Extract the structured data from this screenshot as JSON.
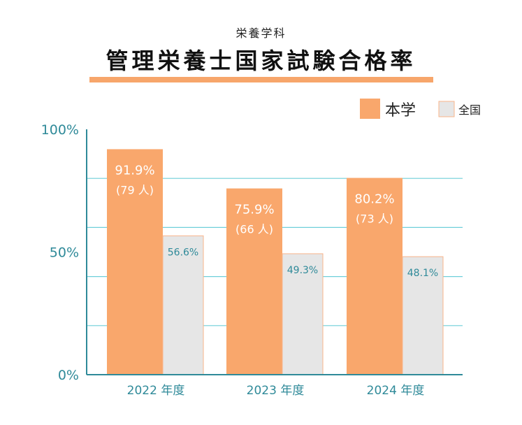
{
  "chart_data": {
    "type": "bar",
    "subtitle": "栄養学科",
    "title": "管理栄養士国家試験合格率",
    "categories": [
      "2022 年度",
      "2023 年度",
      "2024 年度"
    ],
    "series": [
      {
        "name": "本学",
        "color": "#f9a76c",
        "values": [
          91.9,
          75.9,
          80.2
        ],
        "value_labels": [
          "91.9%",
          "75.9%",
          "80.2%"
        ],
        "count_labels": [
          "(79 人)",
          "(66 人)",
          "(73 人)"
        ]
      },
      {
        "name": "全国",
        "color": "#e6e6e6",
        "values": [
          56.6,
          49.3,
          48.1
        ],
        "value_labels": [
          "56.6%",
          "49.3%",
          "48.1%"
        ]
      }
    ],
    "y_ticks": [
      {
        "value": 100,
        "label": "100%"
      },
      {
        "value": 50,
        "label": "50%"
      },
      {
        "value": 0,
        "label": "0%"
      }
    ],
    "ylim": [
      0,
      100
    ],
    "grid": true,
    "legend_position": "top-right",
    "axis_color": "#2f8a99",
    "grid_color": "#6fcfd9"
  }
}
